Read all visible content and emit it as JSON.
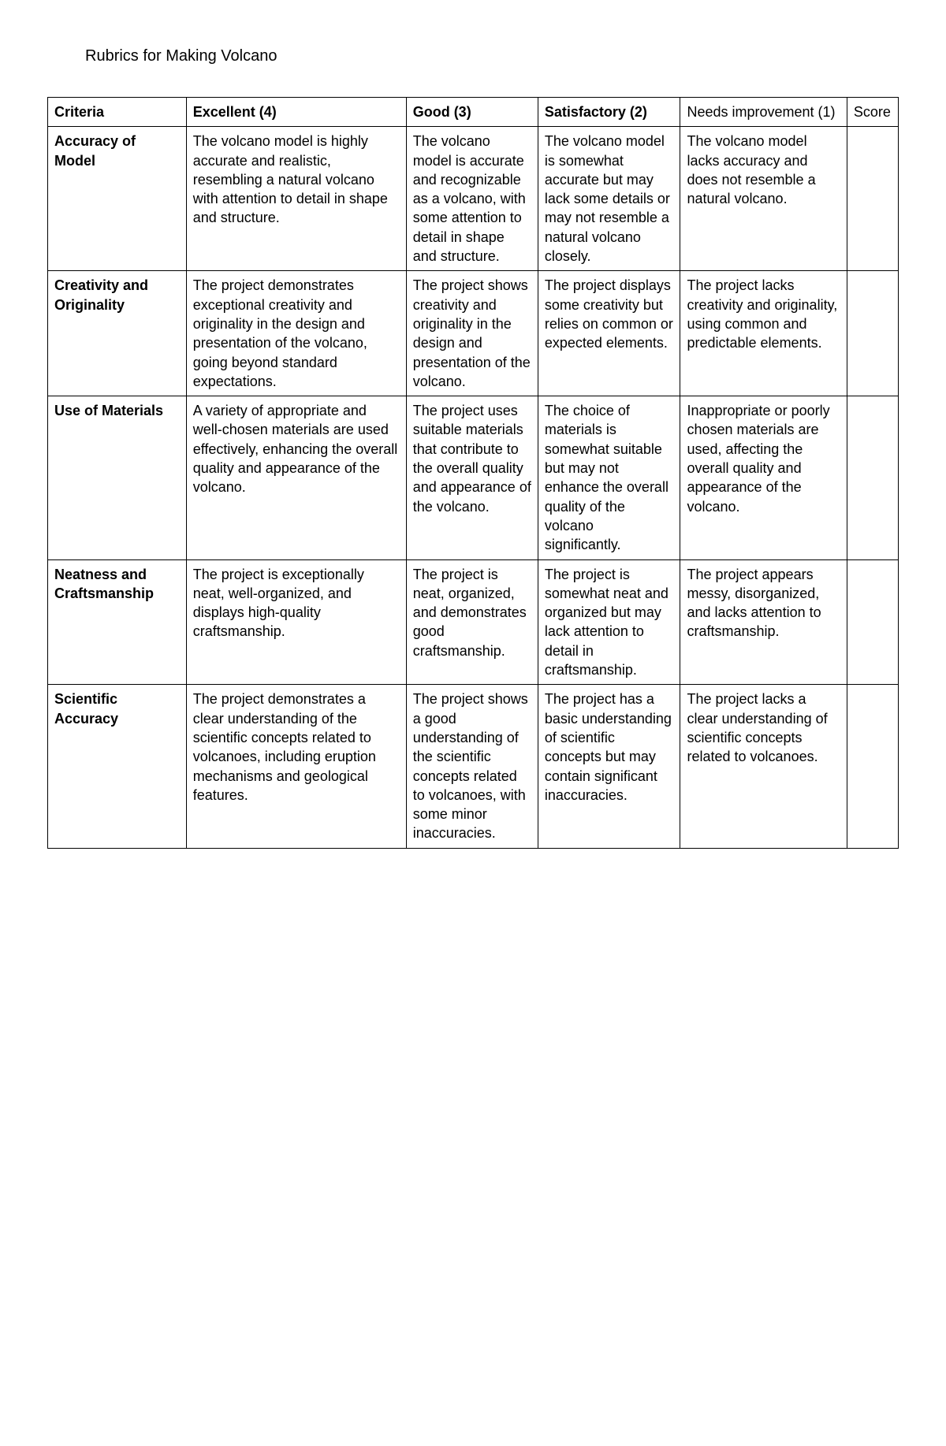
{
  "document": {
    "title": "Rubrics for Making Volcano"
  },
  "table": {
    "headers": {
      "criteria": "Criteria",
      "excellent": "Excellent (4)",
      "good": "Good (3)",
      "satisfactory": "Satisfactory (2)",
      "needs": "Needs improvement (1)",
      "score": "Score"
    },
    "rows": [
      {
        "criteria": "Accuracy of Model",
        "excellent": "The volcano model is highly accurate and realistic, resembling a natural volcano with attention to detail in shape and structure.",
        "good": "The volcano model is accurate and recognizable as a volcano, with some attention to detail in shape and structure.",
        "satisfactory": "The volcano model is somewhat accurate but may lack some details or may not resemble a natural volcano closely.",
        "needs": "The volcano model lacks accuracy and does not resemble a natural volcano.",
        "score": ""
      },
      {
        "criteria": "Creativity and Originality",
        "excellent": "The project demonstrates exceptional creativity and originality in the design and presentation of the volcano, going beyond standard expectations.",
        "good": "The project shows creativity and originality in the design and presentation of the volcano.",
        "satisfactory": "The project displays some creativity but relies on common or expected elements.",
        "needs": "The project lacks creativity and originality, using common and predictable elements.",
        "score": ""
      },
      {
        "criteria": "Use of Materials",
        "excellent": "A variety of appropriate and well-chosen materials are used effectively, enhancing the overall quality and appearance of the volcano.",
        "good": "The project uses suitable materials that contribute to the overall quality and appearance of the volcano.",
        "satisfactory": "The choice of materials is somewhat suitable but may not enhance the overall quality of the volcano significantly.",
        "needs": "Inappropriate or poorly chosen materials are used, affecting the overall quality and appearance of the volcano.",
        "score": ""
      },
      {
        "criteria": "Neatness and Craftsmanship",
        "excellent": "The project is exceptionally neat, well-organized, and displays high-quality craftsmanship.",
        "good": "The project is neat, organized, and demonstrates good craftsmanship.",
        "satisfactory": "The project is somewhat neat and organized but may lack attention to detail in craftsmanship.",
        "needs": "The project appears messy, disorganized, and lacks attention to craftsmanship.",
        "score": ""
      },
      {
        "criteria": "Scientific Accuracy",
        "excellent": "The project demonstrates a clear understanding of the scientific concepts related to volcanoes, including eruption mechanisms and geological features.",
        "good": "The project shows a good understanding of the scientific concepts related to volcanoes, with some minor inaccuracies.",
        "satisfactory": "The project has a basic understanding of scientific concepts but may contain significant inaccuracies.",
        "needs": "The project lacks a clear understanding of scientific concepts related to volcanoes.",
        "score": ""
      }
    ]
  },
  "styling": {
    "font_family": "Verdana, Geneva, sans-serif",
    "title_fontsize": 20,
    "cell_fontsize": 18,
    "border_color": "#000000",
    "background_color": "#ffffff",
    "text_color": "#000000",
    "column_widths_percent": [
      14.3,
      22.7,
      13.6,
      14.7,
      17.2,
      5.3
    ]
  }
}
